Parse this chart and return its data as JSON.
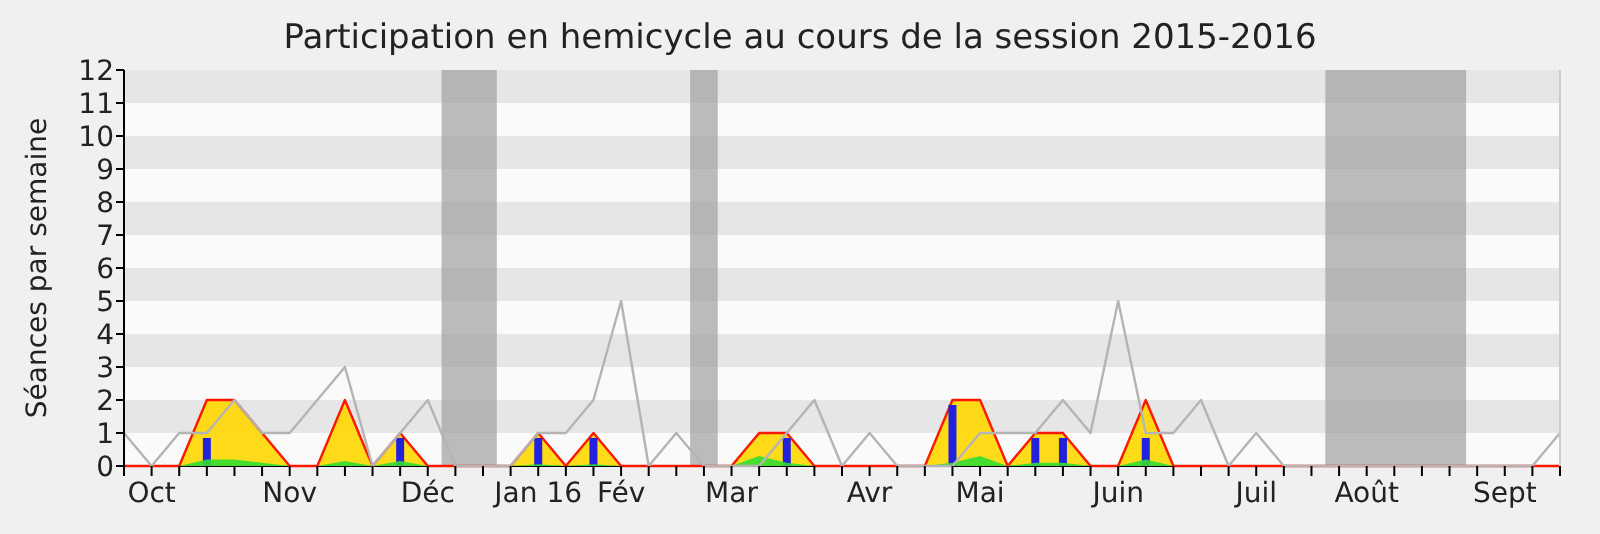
{
  "chart_data": {
    "type": "line",
    "title": "Participation en hemicycle au cours de la session 2015-2016",
    "ylabel": "Séances par semaine",
    "categories": [
      null,
      "Oct",
      null,
      null,
      null,
      null,
      "Nov",
      null,
      null,
      null,
      null,
      "Déc",
      null,
      null,
      null,
      "Jan 16",
      null,
      null,
      "Fév",
      null,
      null,
      null,
      "Mar",
      null,
      null,
      null,
      null,
      "Avr",
      null,
      null,
      null,
      "Mai",
      null,
      null,
      null,
      null,
      "Juin",
      null,
      null,
      null,
      null,
      "Juil",
      null,
      null,
      null,
      "Août",
      null,
      null,
      null,
      null,
      "Sept",
      null,
      null
    ],
    "ylim": [
      0,
      12
    ],
    "yticks": [
      0,
      1,
      2,
      3,
      4,
      5,
      6,
      7,
      8,
      9,
      10,
      11,
      12
    ],
    "series": [
      {
        "type": "area",
        "color": "#ffd700",
        "values": [
          0,
          0,
          0,
          2,
          2,
          1,
          0,
          0,
          2,
          0,
          1,
          0,
          0,
          0,
          0,
          1,
          0,
          1,
          0,
          0,
          0,
          0,
          0,
          1,
          1,
          0,
          0,
          0,
          0,
          0,
          2,
          2,
          0,
          1,
          1,
          0,
          0,
          2,
          0,
          0,
          0,
          0,
          0,
          0,
          0,
          0,
          0,
          0,
          0,
          0,
          0,
          0,
          0
        ]
      },
      {
        "type": "bar",
        "color": "#2222dd",
        "values": [
          null,
          null,
          null,
          0.85,
          null,
          null,
          null,
          null,
          null,
          null,
          0.85,
          null,
          null,
          null,
          null,
          0.85,
          null,
          0.85,
          null,
          null,
          null,
          null,
          null,
          null,
          0.85,
          null,
          null,
          null,
          null,
          null,
          1.85,
          null,
          null,
          0.85,
          0.85,
          null,
          null,
          0.85,
          null,
          null,
          null,
          null,
          null,
          null,
          null,
          null,
          null,
          null,
          null,
          null,
          null,
          null,
          null
        ]
      },
      {
        "type": "area",
        "color": "#33dd33",
        "values": [
          0,
          0,
          0,
          0.2,
          0.2,
          0.1,
          0,
          0,
          0.15,
          0,
          0.15,
          0,
          0,
          0,
          0,
          0.05,
          0,
          0.05,
          0,
          0,
          0,
          0,
          0,
          0.3,
          0.1,
          0,
          0,
          0,
          0,
          0,
          0.1,
          0.3,
          0,
          0.1,
          0.1,
          0,
          0,
          0.2,
          0,
          0,
          0,
          0,
          0,
          0,
          0,
          0,
          0,
          0,
          0,
          0,
          0,
          0,
          0
        ]
      },
      {
        "color": "#b4b4b4",
        "values": [
          1,
          0,
          1,
          1,
          2,
          1,
          1,
          2,
          3,
          0,
          1,
          2,
          0,
          0,
          0,
          1,
          1,
          2,
          5,
          0,
          1,
          0,
          0,
          0,
          1,
          2,
          0,
          1,
          0,
          0,
          0,
          1,
          1,
          1,
          2,
          1,
          5,
          1,
          1,
          2,
          0,
          1,
          0,
          0,
          0,
          0,
          0,
          0,
          0,
          0,
          0,
          0,
          1
        ]
      }
    ]
  }
}
